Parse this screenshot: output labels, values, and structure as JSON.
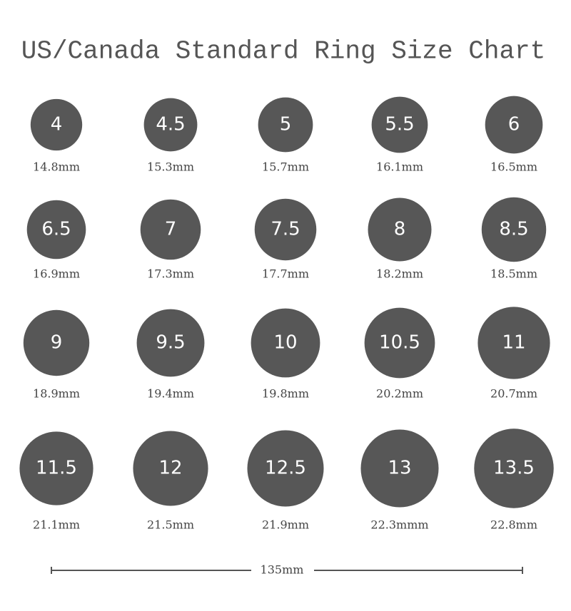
{
  "title": "US/Canada Standard Ring Size Chart",
  "rings": [
    {
      "size": "4",
      "diameter": {
        "value": 14.8,
        "label": "14.8mm"
      }
    },
    {
      "size": "4.5",
      "diameter": {
        "value": 15.3,
        "label": "15.3mm"
      }
    },
    {
      "size": "5",
      "diameter": {
        "value": 15.7,
        "label": "15.7mm"
      }
    },
    {
      "size": "5.5",
      "diameter": {
        "value": 16.1,
        "label": "16.1mm"
      }
    },
    {
      "size": "6",
      "diameter": {
        "value": 16.5,
        "label": "16.5mm"
      }
    },
    {
      "size": "6.5",
      "diameter": {
        "value": 16.9,
        "label": "16.9mm"
      }
    },
    {
      "size": "7",
      "diameter": {
        "value": 17.3,
        "label": "17.3mm"
      }
    },
    {
      "size": "7.5",
      "diameter": {
        "value": 17.7,
        "label": "17.7mm"
      }
    },
    {
      "size": "8",
      "diameter": {
        "value": 18.2,
        "label": "18.2mm"
      }
    },
    {
      "size": "8.5",
      "diameter": {
        "value": 18.5,
        "label": "18.5mm"
      }
    },
    {
      "size": "9",
      "diameter": {
        "value": 18.9,
        "label": "18.9mm"
      }
    },
    {
      "size": "9.5",
      "diameter": {
        "value": 19.4,
        "label": "19.4mm"
      }
    },
    {
      "size": "10",
      "diameter": {
        "value": 19.8,
        "label": "19.8mm"
      }
    },
    {
      "size": "10.5",
      "diameter": {
        "value": 20.2,
        "label": "20.2mm"
      }
    },
    {
      "size": "11",
      "diameter": {
        "value": 20.7,
        "label": "20.7mm"
      }
    },
    {
      "size": "11.5",
      "diameter": {
        "value": 21.1,
        "label": "21.1mm"
      }
    },
    {
      "size": "12",
      "diameter": {
        "value": 21.5,
        "label": "21.5mm"
      }
    },
    {
      "size": "12.5",
      "diameter": {
        "value": 21.9,
        "label": "21.9mm"
      }
    },
    {
      "size": "13",
      "diameter": {
        "value": 22.3,
        "label": "22.3mmm"
      }
    },
    {
      "size": "13.5",
      "diameter": {
        "value": 22.8,
        "label": "22.8mm"
      }
    }
  ],
  "scale": {
    "value": 135,
    "label": "135mm"
  }
}
